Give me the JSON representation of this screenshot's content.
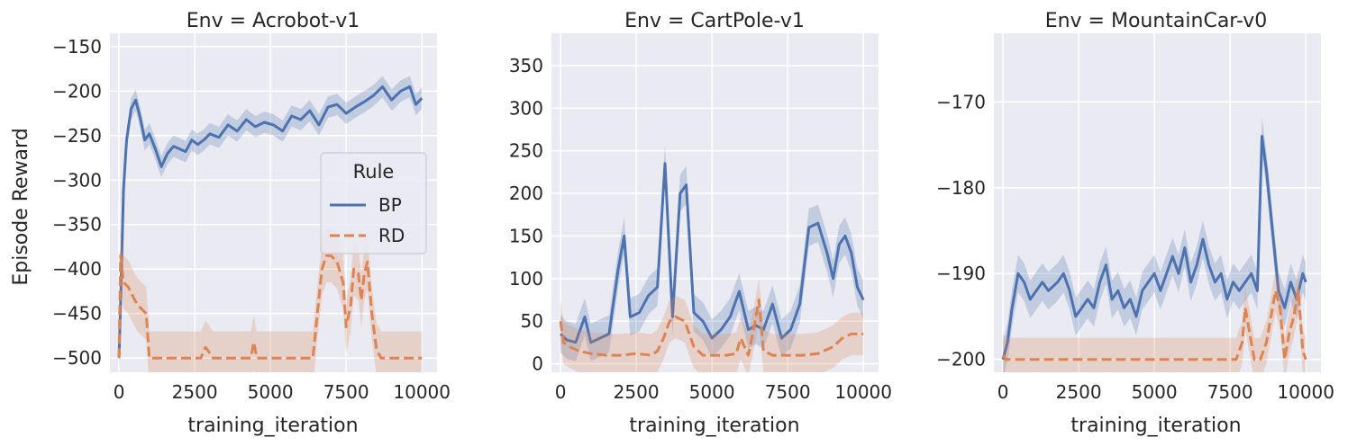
{
  "chart_data": [
    {
      "type": "line",
      "title": "Env = Acrobot-v1",
      "xlabel": "training_iteration",
      "ylabel": "Episode Reward",
      "xlim": [
        -300,
        10500
      ],
      "ylim": [
        -516,
        -135
      ],
      "xticks": [
        0,
        2500,
        5000,
        7500,
        10000
      ],
      "xtick_labels": [
        "0",
        "2500",
        "5000",
        "7500",
        "10000"
      ],
      "yticks": [
        -500,
        -450,
        -400,
        -350,
        -300,
        -250,
        -200,
        -150
      ],
      "ytick_labels": [
        "−500",
        "−450",
        "−400",
        "−350",
        "−300",
        "−250",
        "−200",
        "−150"
      ],
      "grid": true,
      "legend": {
        "placement": "center-right",
        "title": "Rule",
        "entries": [
          "BP",
          "RD"
        ]
      },
      "series": [
        {
          "name": "BP",
          "style": "solid",
          "color": "#4c72b0",
          "band": 12,
          "x": [
            0,
            80,
            150,
            250,
            400,
            550,
            700,
            850,
            1000,
            1200,
            1400,
            1600,
            1800,
            2000,
            2200,
            2400,
            2600,
            2800,
            3000,
            3300,
            3600,
            3900,
            4200,
            4500,
            4800,
            5100,
            5400,
            5700,
            6000,
            6300,
            6600,
            6900,
            7200,
            7500,
            7800,
            8100,
            8400,
            8700,
            9000,
            9300,
            9600,
            9800,
            10000
          ],
          "y": [
            -500,
            -400,
            -310,
            -255,
            -220,
            -210,
            -230,
            -255,
            -248,
            -265,
            -285,
            -270,
            -262,
            -265,
            -268,
            -255,
            -260,
            -255,
            -248,
            -252,
            -238,
            -245,
            -232,
            -240,
            -235,
            -238,
            -245,
            -228,
            -232,
            -222,
            -238,
            -218,
            -215,
            -225,
            -218,
            -212,
            -205,
            -195,
            -210,
            -200,
            -195,
            -215,
            -208
          ]
        },
        {
          "name": "RD",
          "style": "dashed",
          "color": "#dd8452",
          "band": 30,
          "x": [
            0,
            50,
            150,
            300,
            450,
            600,
            750,
            900,
            1000,
            1200,
            2000,
            2700,
            2850,
            2950,
            3100,
            4000,
            4350,
            4450,
            4550,
            6400,
            6550,
            6700,
            6850,
            7000,
            7200,
            7400,
            7500,
            7650,
            7750,
            7900,
            8000,
            8100,
            8200,
            8350,
            8500,
            8650,
            10000
          ],
          "y": [
            -500,
            -385,
            -415,
            -420,
            -430,
            -440,
            -445,
            -450,
            -500,
            -500,
            -500,
            -500,
            -488,
            -492,
            -500,
            -500,
            -500,
            -482,
            -500,
            -500,
            -450,
            -400,
            -385,
            -385,
            -392,
            -415,
            -465,
            -440,
            -400,
            -405,
            -435,
            -405,
            -392,
            -450,
            -490,
            -500,
            -500
          ]
        }
      ]
    },
    {
      "type": "line",
      "title": "Env = CartPole-v1",
      "xlabel": "training_iteration",
      "ylabel": "",
      "xlim": [
        -300,
        10500
      ],
      "ylim": [
        -10,
        388
      ],
      "xticks": [
        0,
        2500,
        5000,
        7500,
        10000
      ],
      "xtick_labels": [
        "0",
        "2500",
        "5000",
        "7500",
        "10000"
      ],
      "yticks": [
        0,
        50,
        100,
        150,
        200,
        250,
        300,
        350
      ],
      "ytick_labels": [
        "0",
        "50",
        "100",
        "150",
        "200",
        "250",
        "300",
        "350"
      ],
      "grid": true,
      "series": [
        {
          "name": "BP",
          "style": "solid",
          "color": "#4c72b0",
          "band": 22,
          "x": [
            0,
            200,
            500,
            800,
            1000,
            1300,
            1600,
            1900,
            2100,
            2300,
            2600,
            2900,
            3200,
            3450,
            3700,
            3950,
            4150,
            4400,
            4700,
            5000,
            5300,
            5600,
            5900,
            6200,
            6450,
            6700,
            7000,
            7300,
            7600,
            7900,
            8200,
            8500,
            8800,
            9000,
            9200,
            9400,
            9600,
            9800,
            10000
          ],
          "y": [
            35,
            28,
            25,
            55,
            25,
            30,
            35,
            110,
            150,
            55,
            60,
            80,
            90,
            235,
            55,
            200,
            210,
            60,
            50,
            30,
            40,
            55,
            85,
            40,
            45,
            40,
            70,
            30,
            40,
            70,
            160,
            165,
            130,
            100,
            140,
            150,
            130,
            90,
            75
          ]
        },
        {
          "name": "RD",
          "style": "dashed",
          "color": "#dd8452",
          "band": 25,
          "x": [
            0,
            100,
            300,
            600,
            1000,
            1500,
            2000,
            2500,
            3000,
            3200,
            3400,
            3600,
            3800,
            4100,
            4400,
            4700,
            5500,
            5800,
            5950,
            6200,
            6400,
            6550,
            6700,
            7000,
            7500,
            8000,
            8500,
            9000,
            9300,
            9600,
            10000
          ],
          "y": [
            50,
            25,
            20,
            15,
            12,
            10,
            10,
            12,
            10,
            15,
            30,
            50,
            55,
            50,
            20,
            10,
            10,
            12,
            30,
            10,
            45,
            75,
            15,
            10,
            10,
            10,
            12,
            20,
            30,
            35,
            35
          ]
        }
      ]
    },
    {
      "type": "line",
      "title": "Env = MountainCar-v0",
      "xlabel": "training_iteration",
      "ylabel": "",
      "xlim": [
        -300,
        10500
      ],
      "ylim": [
        -201.5,
        -162
      ],
      "xticks": [
        0,
        2500,
        5000,
        7500,
        10000
      ],
      "xtick_labels": [
        "0",
        "2500",
        "5000",
        "7500",
        "10000"
      ],
      "yticks": [
        -200,
        -190,
        -180,
        -170
      ],
      "ytick_labels": [
        "−200",
        "−190",
        "−180",
        "−170"
      ],
      "grid": true,
      "series": [
        {
          "name": "BP",
          "style": "solid",
          "color": "#4c72b0",
          "band": 2.2,
          "x": [
            0,
            150,
            300,
            500,
            700,
            900,
            1100,
            1300,
            1500,
            1800,
            2000,
            2200,
            2400,
            2600,
            2800,
            3000,
            3200,
            3400,
            3600,
            3800,
            4000,
            4200,
            4400,
            4600,
            4800,
            5000,
            5200,
            5400,
            5600,
            5800,
            6000,
            6200,
            6400,
            6600,
            6800,
            7000,
            7200,
            7400,
            7600,
            7800,
            8000,
            8200,
            8400,
            8550,
            8700,
            8900,
            9100,
            9300,
            9500,
            9700,
            9900,
            10000
          ],
          "y": [
            -200,
            -198,
            -194,
            -190,
            -191,
            -193,
            -192,
            -191,
            -192,
            -191,
            -190,
            -192,
            -195,
            -194,
            -193,
            -194,
            -191,
            -189,
            -193,
            -192,
            -194,
            -193,
            -195,
            -192,
            -191,
            -190,
            -192,
            -190,
            -188,
            -190,
            -187,
            -191,
            -189,
            -186,
            -189,
            -191,
            -190,
            -193,
            -191,
            -192,
            -191,
            -190,
            -192,
            -174,
            -178,
            -185,
            -192,
            -194,
            -191,
            -193,
            -190,
            -191
          ]
        },
        {
          "name": "RD",
          "style": "dashed",
          "color": "#dd8452",
          "band": 2.5,
          "x": [
            0,
            100,
            300,
            1000,
            2000,
            3000,
            4000,
            5000,
            6000,
            7000,
            7500,
            7700,
            7900,
            8000,
            8150,
            8300,
            8500,
            8700,
            8850,
            9000,
            9150,
            9300,
            9450,
            9600,
            9750,
            9900,
            10000
          ],
          "y": [
            -199.5,
            -200,
            -200,
            -200,
            -200,
            -200,
            -200,
            -200,
            -200,
            -200,
            -200,
            -200,
            -198,
            -194,
            -197,
            -200,
            -200,
            -198,
            -195,
            -192,
            -194,
            -200,
            -197,
            -195,
            -192,
            -199,
            -200
          ]
        }
      ]
    }
  ]
}
